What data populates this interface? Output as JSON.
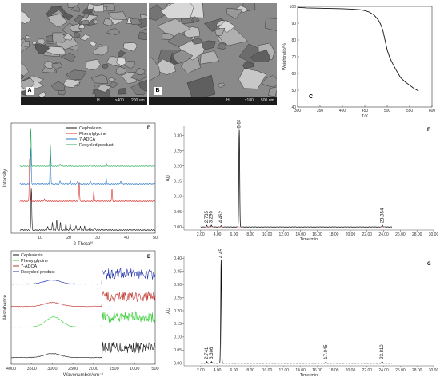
{
  "panels": {
    "A": {
      "letter": "A",
      "info_left": "H",
      "info_mag": "x400",
      "info_scale": "200 um"
    },
    "B": {
      "letter": "B",
      "info_left": "H",
      "info_mag": "x180",
      "info_scale": "500 um"
    },
    "C": {
      "letter": "C"
    },
    "D": {
      "letter": "D"
    },
    "E": {
      "letter": "E"
    },
    "F": {
      "letter": "F"
    },
    "G": {
      "letter": "G"
    }
  },
  "chart_data": [
    {
      "id": "C",
      "type": "line",
      "xlabel": "T/K",
      "ylabel": "Weightratio/%",
      "xlim": [
        300,
        600
      ],
      "ylim": [
        40,
        100
      ],
      "xticks": [
        "300",
        "350",
        "400",
        "450",
        "500",
        "550",
        "600"
      ],
      "yticks": [
        "40",
        "50",
        "60",
        "70",
        "80",
        "90",
        "100"
      ],
      "x": [
        300,
        320,
        350,
        380,
        400,
        420,
        440,
        450,
        460,
        470,
        480,
        485,
        490,
        495,
        500,
        505,
        510,
        520,
        530,
        540,
        550,
        560,
        570
      ],
      "y": [
        99.4,
        99.1,
        98.9,
        98.7,
        98.6,
        98.4,
        98.0,
        97.5,
        96.6,
        95.0,
        92.0,
        89.5,
        86.0,
        80.0,
        74.0,
        70.0,
        67.0,
        62.0,
        57.5,
        55.0,
        53.0,
        51.0,
        49.5
      ]
    },
    {
      "id": "D",
      "type": "line",
      "xlabel": "2-Theta/°",
      "ylabel": "Intensity",
      "xlim": [
        0,
        50
      ],
      "xticks": [
        "10",
        "20",
        "30",
        "40",
        "50"
      ],
      "legend": [
        "Cephalexin",
        "Phenylglycine",
        "7-ADCA",
        "Recycled product"
      ],
      "colors": [
        "#1a1a1a",
        "#d9302b",
        "#2b78c9",
        "#2aa85a"
      ],
      "series": [
        {
          "name": "Cephalexin",
          "peaks": [
            [
              7.0,
              35
            ],
            [
              12.7,
              3
            ],
            [
              14.3,
              6
            ],
            [
              15.8,
              8
            ],
            [
              17.1,
              6
            ],
            [
              19.0,
              5
            ],
            [
              20.5,
              5
            ],
            [
              22.5,
              4
            ],
            [
              24.0,
              3
            ],
            [
              25.5,
              3
            ],
            [
              27.3,
              2
            ],
            [
              29.0,
              2
            ]
          ]
        },
        {
          "name": "Phenylglycine",
          "peaks": [
            [
              6.4,
              35
            ],
            [
              23.6,
              16
            ],
            [
              28.7,
              8
            ],
            [
              35.0,
              10
            ],
            [
              11.5,
              2
            ]
          ]
        },
        {
          "name": "7-ADCA",
          "peaks": [
            [
              6.8,
              30
            ],
            [
              13.6,
              28
            ],
            [
              17.0,
              3
            ],
            [
              20.5,
              3
            ],
            [
              23.0,
              2
            ],
            [
              27.5,
              3
            ],
            [
              33.0,
              4
            ],
            [
              38.0,
              2
            ]
          ]
        },
        {
          "name": "Recycled product",
          "peaks": [
            [
              6.8,
              45
            ],
            [
              13.6,
              26
            ],
            [
              17.0,
              3
            ],
            [
              20.5,
              2
            ],
            [
              27.5,
              2
            ],
            [
              33.0,
              4
            ]
          ]
        }
      ]
    },
    {
      "id": "E",
      "type": "line",
      "xlabel": "Wavenumber/cm⁻¹",
      "ylabel": "Absorbance",
      "xlim": [
        4000,
        500
      ],
      "xticks": [
        "4000",
        "3500",
        "3000",
        "2500",
        "2000",
        "1500",
        "1000",
        "500"
      ],
      "legend": [
        "Cephalexin",
        "Phenylglycine",
        "7-ADCA",
        "Recycled product"
      ],
      "colors": [
        "#1a1a1a",
        "#33cc33",
        "#c0302b",
        "#2233aa"
      ],
      "series": [
        {
          "name": "Cephalexin"
        },
        {
          "name": "Phenylglycine"
        },
        {
          "name": "7-ADCA"
        },
        {
          "name": "Recycled product"
        }
      ]
    },
    {
      "id": "F",
      "type": "line",
      "xlabel": "Time/min",
      "ylabel": "AU",
      "xlim": [
        0,
        30
      ],
      "ylim": [
        -0.01,
        0.33
      ],
      "xticks": [
        "2.00",
        "4.00",
        "6.00",
        "8.00",
        "10.00",
        "12.00",
        "14.00",
        "16.00",
        "18.00",
        "20.00",
        "22.00",
        "24.00",
        "26.00",
        "28.00",
        "30.00"
      ],
      "yticks": [
        "0.00",
        "0.05",
        "0.10",
        "0.15",
        "0.20",
        "0.25",
        "0.30"
      ],
      "peaks": [
        {
          "rt": 2.735,
          "height": 0.005,
          "label": "2.735"
        },
        {
          "rt": 3.29,
          "height": 0.006,
          "label": "3.290"
        },
        {
          "rt": 4.462,
          "height": 0.004,
          "label": "4.462"
        },
        {
          "rt": 6.64,
          "height": 0.318,
          "label": "6.640"
        },
        {
          "rt": 23.854,
          "height": 0.006,
          "label": "23.854"
        }
      ]
    },
    {
      "id": "G",
      "type": "line",
      "xlabel": "Time/min",
      "ylabel": "AU",
      "xlim": [
        0,
        30
      ],
      "ylim": [
        -0.01,
        0.41
      ],
      "xticks": [
        "2.00",
        "4.00",
        "6.00",
        "8.00",
        "10.00",
        "12.00",
        "14.00",
        "16.00",
        "18.00",
        "20.00",
        "22.00",
        "24.00",
        "26.00",
        "28.00",
        "30.00"
      ],
      "yticks": [
        "0.00",
        "0.05",
        "0.10",
        "0.15",
        "0.20",
        "0.25",
        "0.30",
        "0.35",
        "0.40"
      ],
      "peaks": [
        {
          "rt": 2.741,
          "height": 0.006,
          "label": "2.741"
        },
        {
          "rt": 3.306,
          "height": 0.006,
          "label": "3.306"
        },
        {
          "rt": 4.459,
          "height": 0.395,
          "label": "4.459"
        },
        {
          "rt": 17.045,
          "height": 0.004,
          "label": "17.045"
        },
        {
          "rt": 23.81,
          "height": 0.006,
          "label": "23.810"
        }
      ]
    }
  ]
}
